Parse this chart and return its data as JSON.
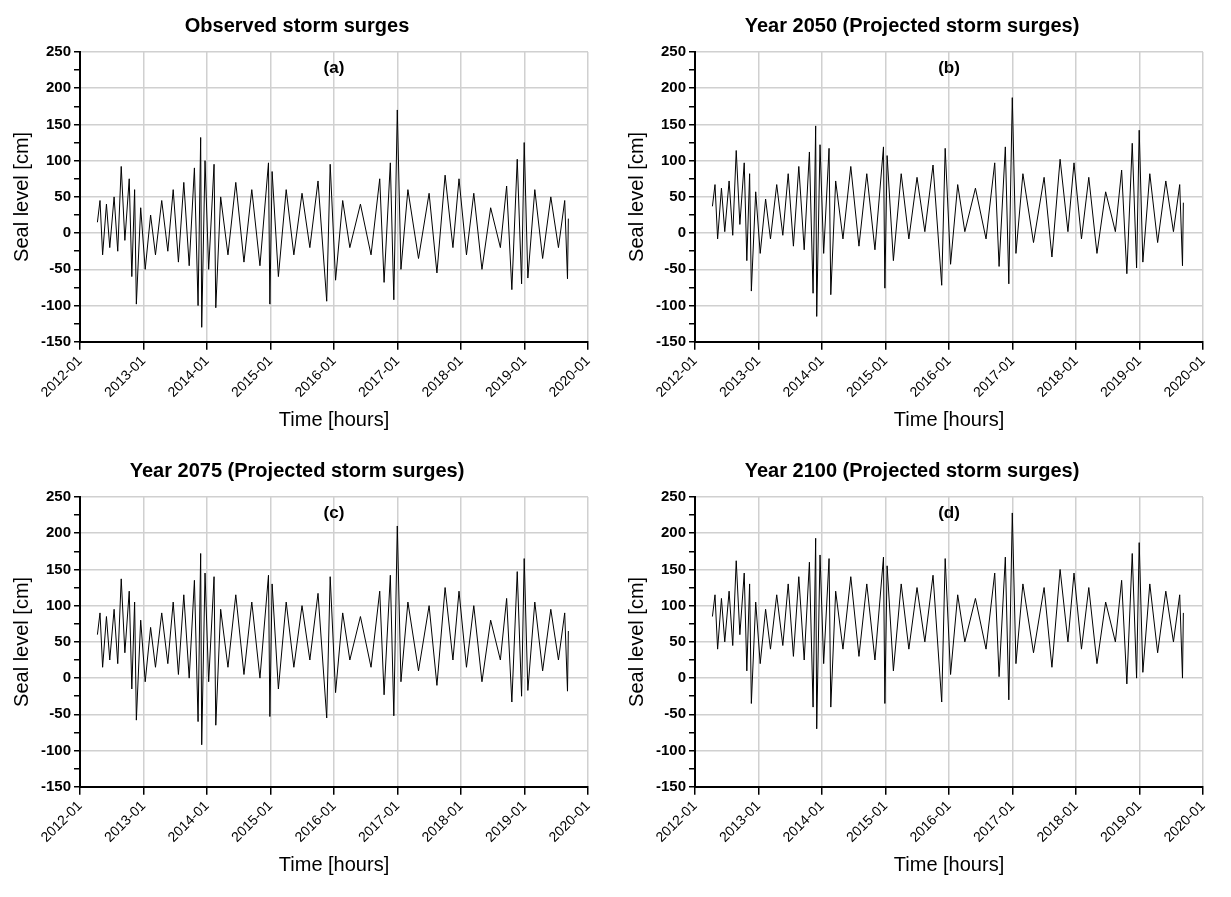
{
  "chart_data": [
    {
      "type": "line",
      "title": "Observed storm surges",
      "annotations": [
        "(a)"
      ],
      "xlabel": "Time [hours]",
      "ylabel": "Seal level [cm]",
      "grid": true,
      "xlim": [
        "2012-01",
        "2020-01"
      ],
      "xticks": [
        "2012-01",
        "2013-01",
        "2014-01",
        "2015-01",
        "2016-01",
        "2017-01",
        "2018-01",
        "2019-01",
        "2020-01"
      ],
      "ylim": [
        -150,
        250
      ],
      "yticks": [
        -150,
        {
          "value": -125,
          "label": null
        },
        -100,
        {
          "value": -75,
          "label": null
        },
        -50,
        {
          "value": -25,
          "label": null
        },
        0,
        {
          "value": 25,
          "label": null
        },
        50,
        {
          "value": 75,
          "label": null
        },
        100,
        {
          "value": 125,
          "label": null
        },
        150,
        {
          "value": 175,
          "label": null
        },
        200,
        {
          "value": 225,
          "label": null
        },
        250
      ],
      "x": [
        "2012-04-10",
        "2012-04-25",
        "2012-05-10",
        "2012-06-01",
        "2012-06-20",
        "2012-07-15",
        "2012-08-05",
        "2012-08-25",
        "2012-09-15",
        "2012-10-10",
        "2012-10-25",
        "2012-11-10",
        "2012-11-20",
        "2012-12-15",
        "2013-01-10",
        "2013-02-10",
        "2013-03-10",
        "2013-04-15",
        "2013-05-20",
        "2013-06-20",
        "2013-07-20",
        "2013-08-20",
        "2013-09-20",
        "2013-10-20",
        "2013-11-10",
        "2013-11-25",
        "2013-12-01",
        "2013-12-20",
        "2014-01-10",
        "2014-02-10",
        "2014-02-20",
        "2014-03-20",
        "2014-05-01",
        "2014-06-15",
        "2014-08-01",
        "2014-09-15",
        "2014-11-01",
        "2014-12-20",
        "2014-12-28",
        "2015-01-10",
        "2015-02-15",
        "2015-04-01",
        "2015-05-15",
        "2015-07-01",
        "2015-08-15",
        "2015-10-01",
        "2015-11-20",
        "2015-12-10",
        "2016-01-10",
        "2016-02-20",
        "2016-04-01",
        "2016-06-01",
        "2016-08-01",
        "2016-09-20",
        "2016-10-15",
        "2016-11-20",
        "2016-12-10",
        "2016-12-30",
        "2017-01-20",
        "2017-03-01",
        "2017-05-01",
        "2017-07-01",
        "2017-08-15",
        "2017-10-01",
        "2017-11-15",
        "2017-12-20",
        "2018-02-01",
        "2018-03-15",
        "2018-05-01",
        "2018-06-20",
        "2018-08-15",
        "2018-09-20",
        "2018-10-20",
        "2018-11-20",
        "2018-12-15",
        "2018-12-30",
        "2019-01-20",
        "2019-03-01",
        "2019-04-15",
        "2019-06-01",
        "2019-07-15",
        "2019-08-20",
        "2019-09-05",
        "2019-09-10"
      ],
      "series": [
        {
          "color": "#000000",
          "values": [
            15,
            45,
            -30,
            40,
            -20,
            50,
            -25,
            92,
            -10,
            75,
            -60,
            60,
            -98,
            35,
            -50,
            25,
            -30,
            45,
            -25,
            60,
            -40,
            70,
            -45,
            90,
            -100,
            132,
            -130,
            100,
            -50,
            95,
            -103,
            50,
            -30,
            70,
            -40,
            60,
            -45,
            97,
            -98,
            85,
            -60,
            60,
            -30,
            55,
            -20,
            72,
            -94,
            95,
            -65,
            45,
            -20,
            40,
            -30,
            75,
            -68,
            97,
            -92,
            170,
            -50,
            60,
            -35,
            55,
            -55,
            80,
            -20,
            75,
            -30,
            55,
            -50,
            35,
            -20,
            65,
            -78,
            102,
            -70,
            125,
            -62,
            60,
            -35,
            50,
            -20,
            45,
            -63,
            20
          ]
        }
      ]
    },
    {
      "type": "line",
      "title": "Year 2050 (Projected storm surges)",
      "annotations": [
        "(b)"
      ],
      "xlabel": "Time [hours]",
      "ylabel": "Seal level [cm]",
      "grid": true,
      "xlim": [
        "2012-01",
        "2020-01"
      ],
      "xticks": [
        "2012-01",
        "2013-01",
        "2014-01",
        "2015-01",
        "2016-01",
        "2017-01",
        "2018-01",
        "2019-01",
        "2020-01"
      ],
      "ylim": [
        -150,
        250
      ],
      "yticks": [
        -150,
        {
          "value": -125,
          "label": null
        },
        -100,
        {
          "value": -75,
          "label": null
        },
        -50,
        {
          "value": -25,
          "label": null
        },
        0,
        {
          "value": 25,
          "label": null
        },
        50,
        {
          "value": 75,
          "label": null
        },
        100,
        {
          "value": 125,
          "label": null
        },
        150,
        {
          "value": 175,
          "label": null
        },
        200,
        {
          "value": 225,
          "label": null
        },
        250
      ],
      "x": [
        "2012-04-10",
        "2012-04-25",
        "2012-05-10",
        "2012-06-01",
        "2012-06-20",
        "2012-07-15",
        "2012-08-05",
        "2012-08-25",
        "2012-09-15",
        "2012-10-10",
        "2012-10-25",
        "2012-11-10",
        "2012-11-20",
        "2012-12-15",
        "2013-01-10",
        "2013-02-10",
        "2013-03-10",
        "2013-04-15",
        "2013-05-20",
        "2013-06-20",
        "2013-07-20",
        "2013-08-20",
        "2013-09-20",
        "2013-10-20",
        "2013-11-10",
        "2013-11-25",
        "2013-12-01",
        "2013-12-20",
        "2014-01-10",
        "2014-02-10",
        "2014-02-20",
        "2014-03-20",
        "2014-05-01",
        "2014-06-15",
        "2014-08-01",
        "2014-09-15",
        "2014-11-01",
        "2014-12-20",
        "2014-12-28",
        "2015-01-10",
        "2015-02-15",
        "2015-04-01",
        "2015-05-15",
        "2015-07-01",
        "2015-08-15",
        "2015-10-01",
        "2015-11-20",
        "2015-12-10",
        "2016-01-10",
        "2016-02-20",
        "2016-04-01",
        "2016-06-01",
        "2016-08-01",
        "2016-09-20",
        "2016-10-15",
        "2016-11-20",
        "2016-12-10",
        "2016-12-30",
        "2017-01-20",
        "2017-03-01",
        "2017-05-01",
        "2017-07-01",
        "2017-08-15",
        "2017-10-01",
        "2017-11-15",
        "2017-12-20",
        "2018-02-01",
        "2018-03-15",
        "2018-05-01",
        "2018-06-20",
        "2018-08-15",
        "2018-09-20",
        "2018-10-20",
        "2018-11-20",
        "2018-12-15",
        "2018-12-30",
        "2019-01-20",
        "2019-03-01",
        "2019-04-15",
        "2019-06-01",
        "2019-07-15",
        "2019-08-20",
        "2019-09-05",
        "2019-09-10"
      ],
      "series": [
        {
          "color": "#000000",
          "values": [
            37,
            67,
            -8,
            62,
            2,
            72,
            -3,
            114,
            12,
            97,
            -38,
            82,
            -80,
            57,
            -28,
            47,
            -8,
            67,
            -3,
            82,
            -18,
            92,
            -23,
            112,
            -83,
            148,
            -115,
            122,
            -28,
            117,
            -85,
            72,
            -8,
            92,
            -18,
            82,
            -23,
            119,
            -76,
            107,
            -38,
            82,
            -8,
            77,
            2,
            94,
            -72,
            117,
            -43,
            67,
            2,
            62,
            -8,
            97,
            -46,
            119,
            -70,
            187,
            -28,
            82,
            -13,
            77,
            -33,
            102,
            2,
            97,
            -8,
            77,
            -28,
            57,
            2,
            87,
            -56,
            124,
            -48,
            142,
            -40,
            82,
            -13,
            72,
            2,
            67,
            -45,
            42
          ]
        }
      ]
    },
    {
      "type": "line",
      "title": "Year 2075 (Projected storm surges)",
      "annotations": [
        "(c)"
      ],
      "xlabel": "Time [hours]",
      "ylabel": "Seal level [cm]",
      "grid": true,
      "xlim": [
        "2012-01",
        "2020-01"
      ],
      "xticks": [
        "2012-01",
        "2013-01",
        "2014-01",
        "2015-01",
        "2016-01",
        "2017-01",
        "2018-01",
        "2019-01",
        "2020-01"
      ],
      "ylim": [
        -150,
        250
      ],
      "yticks": [
        -150,
        {
          "value": -125,
          "label": null
        },
        -100,
        {
          "value": -75,
          "label": null
        },
        -50,
        {
          "value": -25,
          "label": null
        },
        0,
        {
          "value": 25,
          "label": null
        },
        50,
        {
          "value": 75,
          "label": null
        },
        100,
        {
          "value": 125,
          "label": null
        },
        150,
        {
          "value": 175,
          "label": null
        },
        200,
        {
          "value": 225,
          "label": null
        },
        250
      ],
      "x": [
        "2012-04-10",
        "2012-04-25",
        "2012-05-10",
        "2012-06-01",
        "2012-06-20",
        "2012-07-15",
        "2012-08-05",
        "2012-08-25",
        "2012-09-15",
        "2012-10-10",
        "2012-10-25",
        "2012-11-10",
        "2012-11-20",
        "2012-12-15",
        "2013-01-10",
        "2013-02-10",
        "2013-03-10",
        "2013-04-15",
        "2013-05-20",
        "2013-06-20",
        "2013-07-20",
        "2013-08-20",
        "2013-09-20",
        "2013-10-20",
        "2013-11-10",
        "2013-11-25",
        "2013-12-01",
        "2013-12-20",
        "2014-01-10",
        "2014-02-10",
        "2014-02-20",
        "2014-03-20",
        "2014-05-01",
        "2014-06-15",
        "2014-08-01",
        "2014-09-15",
        "2014-11-01",
        "2014-12-20",
        "2014-12-28",
        "2015-01-10",
        "2015-02-15",
        "2015-04-01",
        "2015-05-15",
        "2015-07-01",
        "2015-08-15",
        "2015-10-01",
        "2015-11-20",
        "2015-12-10",
        "2016-01-10",
        "2016-02-20",
        "2016-04-01",
        "2016-06-01",
        "2016-08-01",
        "2016-09-20",
        "2016-10-15",
        "2016-11-20",
        "2016-12-10",
        "2016-12-30",
        "2017-01-20",
        "2017-03-01",
        "2017-05-01",
        "2017-07-01",
        "2017-08-15",
        "2017-10-01",
        "2017-11-15",
        "2017-12-20",
        "2018-02-01",
        "2018-03-15",
        "2018-05-01",
        "2018-06-20",
        "2018-08-15",
        "2018-09-20",
        "2018-10-20",
        "2018-11-20",
        "2018-12-15",
        "2018-12-30",
        "2019-01-20",
        "2019-03-01",
        "2019-04-15",
        "2019-06-01",
        "2019-07-15",
        "2019-08-20",
        "2019-09-05",
        "2019-09-10"
      ],
      "series": [
        {
          "color": "#000000",
          "values": [
            60,
            90,
            15,
            85,
            25,
            95,
            20,
            137,
            35,
            120,
            -15,
            105,
            -58,
            80,
            -5,
            70,
            15,
            90,
            20,
            105,
            5,
            115,
            0,
            135,
            -60,
            172,
            -92,
            145,
            -5,
            140,
            -65,
            95,
            15,
            115,
            5,
            105,
            0,
            142,
            -53,
            130,
            -15,
            105,
            15,
            100,
            25,
            117,
            -55,
            140,
            -20,
            90,
            25,
            85,
            15,
            120,
            -23,
            142,
            -52,
            210,
            -5,
            105,
            10,
            100,
            -10,
            125,
            25,
            120,
            15,
            100,
            -5,
            80,
            25,
            110,
            -33,
            147,
            -25,
            165,
            -17,
            105,
            10,
            95,
            25,
            90,
            -18,
            65
          ]
        }
      ]
    },
    {
      "type": "line",
      "title": "Year 2100 (Projected storm surges)",
      "annotations": [
        "(d)"
      ],
      "xlabel": "Time [hours]",
      "ylabel": "Seal level [cm]",
      "grid": true,
      "xlim": [
        "2012-01",
        "2020-01"
      ],
      "xticks": [
        "2012-01",
        "2013-01",
        "2014-01",
        "2015-01",
        "2016-01",
        "2017-01",
        "2018-01",
        "2019-01",
        "2020-01"
      ],
      "ylim": [
        -150,
        250
      ],
      "yticks": [
        -150,
        {
          "value": -125,
          "label": null
        },
        -100,
        {
          "value": -75,
          "label": null
        },
        -50,
        {
          "value": -25,
          "label": null
        },
        0,
        {
          "value": 25,
          "label": null
        },
        50,
        {
          "value": 75,
          "label": null
        },
        100,
        {
          "value": 125,
          "label": null
        },
        150,
        {
          "value": 175,
          "label": null
        },
        200,
        {
          "value": 225,
          "label": null
        },
        250
      ],
      "x": [
        "2012-04-10",
        "2012-04-25",
        "2012-05-10",
        "2012-06-01",
        "2012-06-20",
        "2012-07-15",
        "2012-08-05",
        "2012-08-25",
        "2012-09-15",
        "2012-10-10",
        "2012-10-25",
        "2012-11-10",
        "2012-11-20",
        "2012-12-15",
        "2013-01-10",
        "2013-02-10",
        "2013-03-10",
        "2013-04-15",
        "2013-05-20",
        "2013-06-20",
        "2013-07-20",
        "2013-08-20",
        "2013-09-20",
        "2013-10-20",
        "2013-11-10",
        "2013-11-25",
        "2013-12-01",
        "2013-12-20",
        "2014-01-10",
        "2014-02-10",
        "2014-02-20",
        "2014-03-20",
        "2014-05-01",
        "2014-06-15",
        "2014-08-01",
        "2014-09-15",
        "2014-11-01",
        "2014-12-20",
        "2014-12-28",
        "2015-01-10",
        "2015-02-15",
        "2015-04-01",
        "2015-05-15",
        "2015-07-01",
        "2015-08-15",
        "2015-10-01",
        "2015-11-20",
        "2015-12-10",
        "2016-01-10",
        "2016-02-20",
        "2016-04-01",
        "2016-06-01",
        "2016-08-01",
        "2016-09-20",
        "2016-10-15",
        "2016-11-20",
        "2016-12-10",
        "2016-12-30",
        "2017-01-20",
        "2017-03-01",
        "2017-05-01",
        "2017-07-01",
        "2017-08-15",
        "2017-10-01",
        "2017-11-15",
        "2017-12-20",
        "2018-02-01",
        "2018-03-15",
        "2018-05-01",
        "2018-06-20",
        "2018-08-15",
        "2018-09-20",
        "2018-10-20",
        "2018-11-20",
        "2018-12-15",
        "2018-12-30",
        "2019-01-20",
        "2019-03-01",
        "2019-04-15",
        "2019-06-01",
        "2019-07-15",
        "2019-08-20",
        "2019-09-05",
        "2019-09-10"
      ],
      "series": [
        {
          "color": "#000000",
          "values": [
            85,
            115,
            40,
            110,
            50,
            120,
            45,
            162,
            60,
            145,
            10,
            130,
            -35,
            105,
            20,
            95,
            40,
            115,
            45,
            130,
            30,
            140,
            25,
            160,
            -40,
            193,
            -70,
            170,
            20,
            165,
            -40,
            120,
            40,
            140,
            30,
            130,
            25,
            167,
            -35,
            155,
            10,
            130,
            40,
            125,
            50,
            142,
            -33,
            165,
            5,
            115,
            50,
            110,
            40,
            145,
            2,
            167,
            -30,
            228,
            20,
            130,
            35,
            125,
            15,
            150,
            50,
            145,
            40,
            125,
            20,
            105,
            50,
            135,
            -8,
            172,
            0,
            187,
            8,
            130,
            35,
            120,
            50,
            115,
            0,
            90
          ]
        }
      ]
    }
  ]
}
